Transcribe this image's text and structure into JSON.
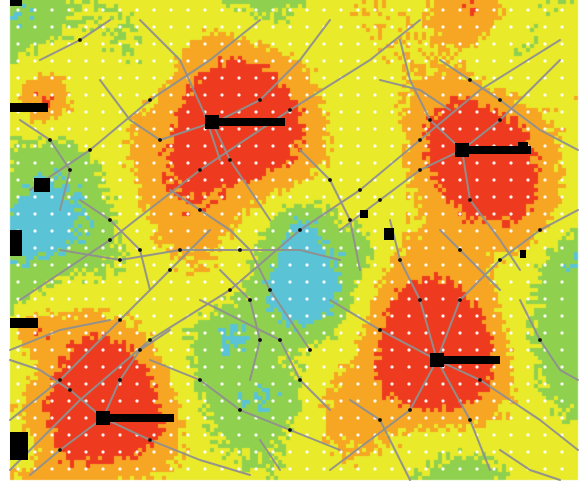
{
  "map": {
    "colors": {
      "background": "#ffffff",
      "level_1": "#5ac4d6",
      "level_2": "#8fd14f",
      "level_3": "#e8ea2a",
      "level_4": "#f6a623",
      "level_5": "#ee3a1f",
      "road": "#8f8f8f",
      "grid_dot": "#ffffff",
      "node": "#111111",
      "facility": "#000000"
    },
    "icons": [
      "facility-marker-icon",
      "road-node-icon",
      "grid-point-icon"
    ],
    "hotspot_count": 4,
    "labels": []
  }
}
